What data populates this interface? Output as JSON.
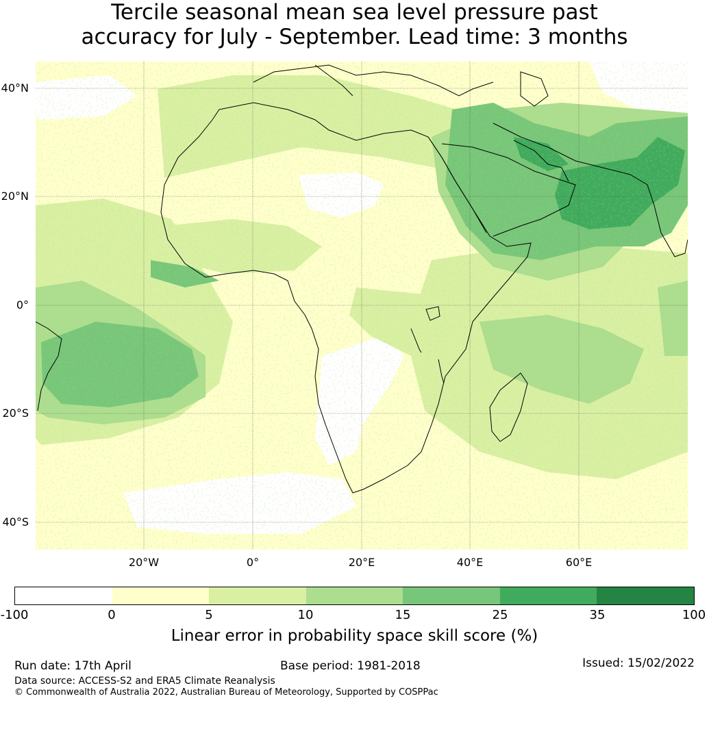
{
  "title": {
    "line1": "Tercile seasonal mean sea level pressure past",
    "line2": "accuracy for July - September. Lead time: 3 months"
  },
  "map": {
    "lat_labels": [
      "40°N",
      "20°N",
      "0°",
      "20°S",
      "40°S"
    ],
    "lat_values": [
      40,
      20,
      0,
      -20,
      -40
    ],
    "lon_labels": [
      "20°W",
      "0°",
      "20°E",
      "40°E",
      "60°E"
    ],
    "lon_values": [
      -20,
      0,
      20,
      40,
      60
    ],
    "extent": {
      "lon_min": -40,
      "lon_max": 80,
      "lat_min": -45,
      "lat_max": 45
    }
  },
  "colorbar": {
    "ticks": [
      "-100",
      "0",
      "5",
      "10",
      "15",
      "25",
      "35",
      "100"
    ],
    "colors": [
      "#ffffff",
      "#ffffcc",
      "#d9f0a3",
      "#addd8e",
      "#78c679",
      "#41ab5d",
      "#238443"
    ],
    "label": "Linear error in probability space skill score (%)"
  },
  "footer": {
    "run_date": "Run date: 17th April",
    "base_period": "Base period: 1981-2018",
    "issued": "Issued: 15/02/2022",
    "data_source": "Data source: ACCESS-S2 and ERA5 Climate Reanalysis",
    "copyright": "© Commonwealth of Australia 2022, Australian Bureau of Meteorology, Supported by COSPPac"
  }
}
